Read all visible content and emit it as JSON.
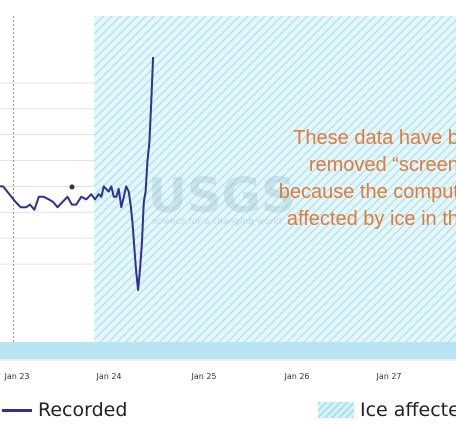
{
  "chart_data": {
    "type": "line",
    "x_ticks": [
      "Jan 23",
      "Jan 24",
      "Jan 25",
      "Jan 26",
      "Jan 27"
    ],
    "ylim": [
      0,
      10
    ],
    "grid": {
      "horizontal": true
    },
    "series": [
      {
        "name": "Recorded",
        "color": "#2e3192",
        "x": [
          22.0,
          22.05,
          22.15,
          22.25,
          22.33,
          22.42,
          22.48,
          22.55,
          22.62,
          22.7,
          22.78,
          22.85,
          22.92,
          23.0,
          23.08,
          23.15,
          23.22,
          23.3,
          23.38,
          23.46,
          23.52,
          23.58,
          23.62,
          23.66,
          23.7,
          23.74,
          23.78,
          23.82,
          23.86,
          23.9,
          23.94,
          23.98,
          24.02,
          24.06,
          24.09,
          24.12,
          24.15,
          24.18,
          24.21,
          24.24,
          24.27,
          24.3,
          24.33,
          24.36,
          24.39,
          24.42,
          24.45
        ],
        "values": [
          5.0,
          5.0,
          4.7,
          4.4,
          4.2,
          4.2,
          4.3,
          4.1,
          4.6,
          4.6,
          4.5,
          4.4,
          4.2,
          4.4,
          4.6,
          4.3,
          4.3,
          4.6,
          4.5,
          4.7,
          4.5,
          4.7,
          4.6,
          5.0,
          4.9,
          4.8,
          5.0,
          4.6,
          4.6,
          4.9,
          4.2,
          4.6,
          5.0,
          4.8,
          4.3,
          3.6,
          2.6,
          1.7,
          1.0,
          1.8,
          2.8,
          4.4,
          4.8,
          6.0,
          6.7,
          8.3,
          10.0
        ]
      }
    ],
    "vline_x": 22.9,
    "ice_start_x": 23.75,
    "annotation": [
      "These data have be",
      "removed “screene",
      "because the computa",
      "affected by ice in the"
    ],
    "annotation_color": "#e07b3a",
    "watermark": "USGS",
    "watermark_sub": "science for a changing world",
    "ice_color": "#a9e2ef",
    "ice_bg_color": "#e6f7fb",
    "ice_bar_color": "#b8e4f4"
  },
  "legend": {
    "recorded": "Recorded",
    "ice": "Ice affecte"
  }
}
